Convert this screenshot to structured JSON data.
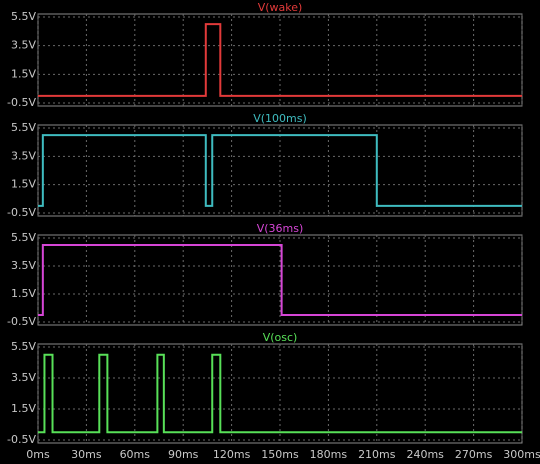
{
  "chart_data": [
    {
      "type": "line",
      "title": "V(wake)",
      "color": "#e23a3a",
      "x": [
        0,
        104,
        104,
        113,
        113,
        300
      ],
      "values": [
        0,
        0,
        5,
        5,
        0,
        0
      ],
      "xlim": [
        0,
        300
      ],
      "ylim": [
        -0.5,
        5.5
      ],
      "yticks": [
        {
          "value": -0.5,
          "label": "-0.5V"
        },
        {
          "value": 1.5,
          "label": "1.5V"
        },
        {
          "value": 3.5,
          "label": "3.5V"
        },
        {
          "value": 5.5,
          "label": "5.5V"
        }
      ],
      "grid": true
    },
    {
      "type": "line",
      "title": "V(100ms)",
      "color": "#3fbcc0",
      "x": [
        0,
        3,
        3,
        104,
        104,
        108,
        108,
        210,
        210,
        300
      ],
      "values": [
        0,
        0,
        5,
        5,
        0,
        0,
        5,
        5,
        0,
        0
      ],
      "xlim": [
        0,
        300
      ],
      "ylim": [
        -0.5,
        5.5
      ],
      "yticks": [
        {
          "value": -0.5,
          "label": "-0.5V"
        },
        {
          "value": 1.5,
          "label": "1.5V"
        },
        {
          "value": 3.5,
          "label": "3.5V"
        },
        {
          "value": 5.5,
          "label": "5.5V"
        }
      ],
      "grid": true
    },
    {
      "type": "line",
      "title": "V(36ms)",
      "color": "#d646d6",
      "x": [
        0,
        3,
        3,
        151,
        151,
        300
      ],
      "values": [
        0,
        0,
        5,
        5,
        0,
        0
      ],
      "xlim": [
        0,
        300
      ],
      "ylim": [
        -0.5,
        5.5
      ],
      "yticks": [
        {
          "value": -0.5,
          "label": "-0.5V"
        },
        {
          "value": 1.5,
          "label": "1.5V"
        },
        {
          "value": 3.5,
          "label": "3.5V"
        },
        {
          "value": 5.5,
          "label": "5.5V"
        }
      ],
      "grid": true
    },
    {
      "type": "line",
      "title": "V(osc)",
      "color": "#58e058",
      "x": [
        0,
        4,
        4,
        9,
        9,
        38,
        38,
        43,
        43,
        74,
        74,
        78,
        78,
        108,
        108,
        113,
        113,
        300
      ],
      "values": [
        0,
        0,
        5,
        5,
        0,
        0,
        5,
        5,
        0,
        0,
        5,
        5,
        0,
        0,
        5,
        5,
        0,
        0
      ],
      "xlim": [
        0,
        300
      ],
      "ylim": [
        -0.5,
        5.5
      ],
      "yticks": [
        {
          "value": -0.5,
          "label": "-0.5V"
        },
        {
          "value": 1.5,
          "label": "1.5V"
        },
        {
          "value": 3.5,
          "label": "3.5V"
        },
        {
          "value": 5.5,
          "label": "5.5V"
        }
      ],
      "xticks": [
        {
          "value": 0,
          "label": "0ms"
        },
        {
          "value": 30,
          "label": "30ms"
        },
        {
          "value": 60,
          "label": "60ms"
        },
        {
          "value": 90,
          "label": "90ms"
        },
        {
          "value": 120,
          "label": "120ms"
        },
        {
          "value": 150,
          "label": "150ms"
        },
        {
          "value": 180,
          "label": "180ms"
        },
        {
          "value": 210,
          "label": "210ms"
        },
        {
          "value": 240,
          "label": "240ms"
        },
        {
          "value": 270,
          "label": "270ms"
        },
        {
          "value": 300,
          "label": "300ms"
        }
      ],
      "grid": true
    }
  ]
}
